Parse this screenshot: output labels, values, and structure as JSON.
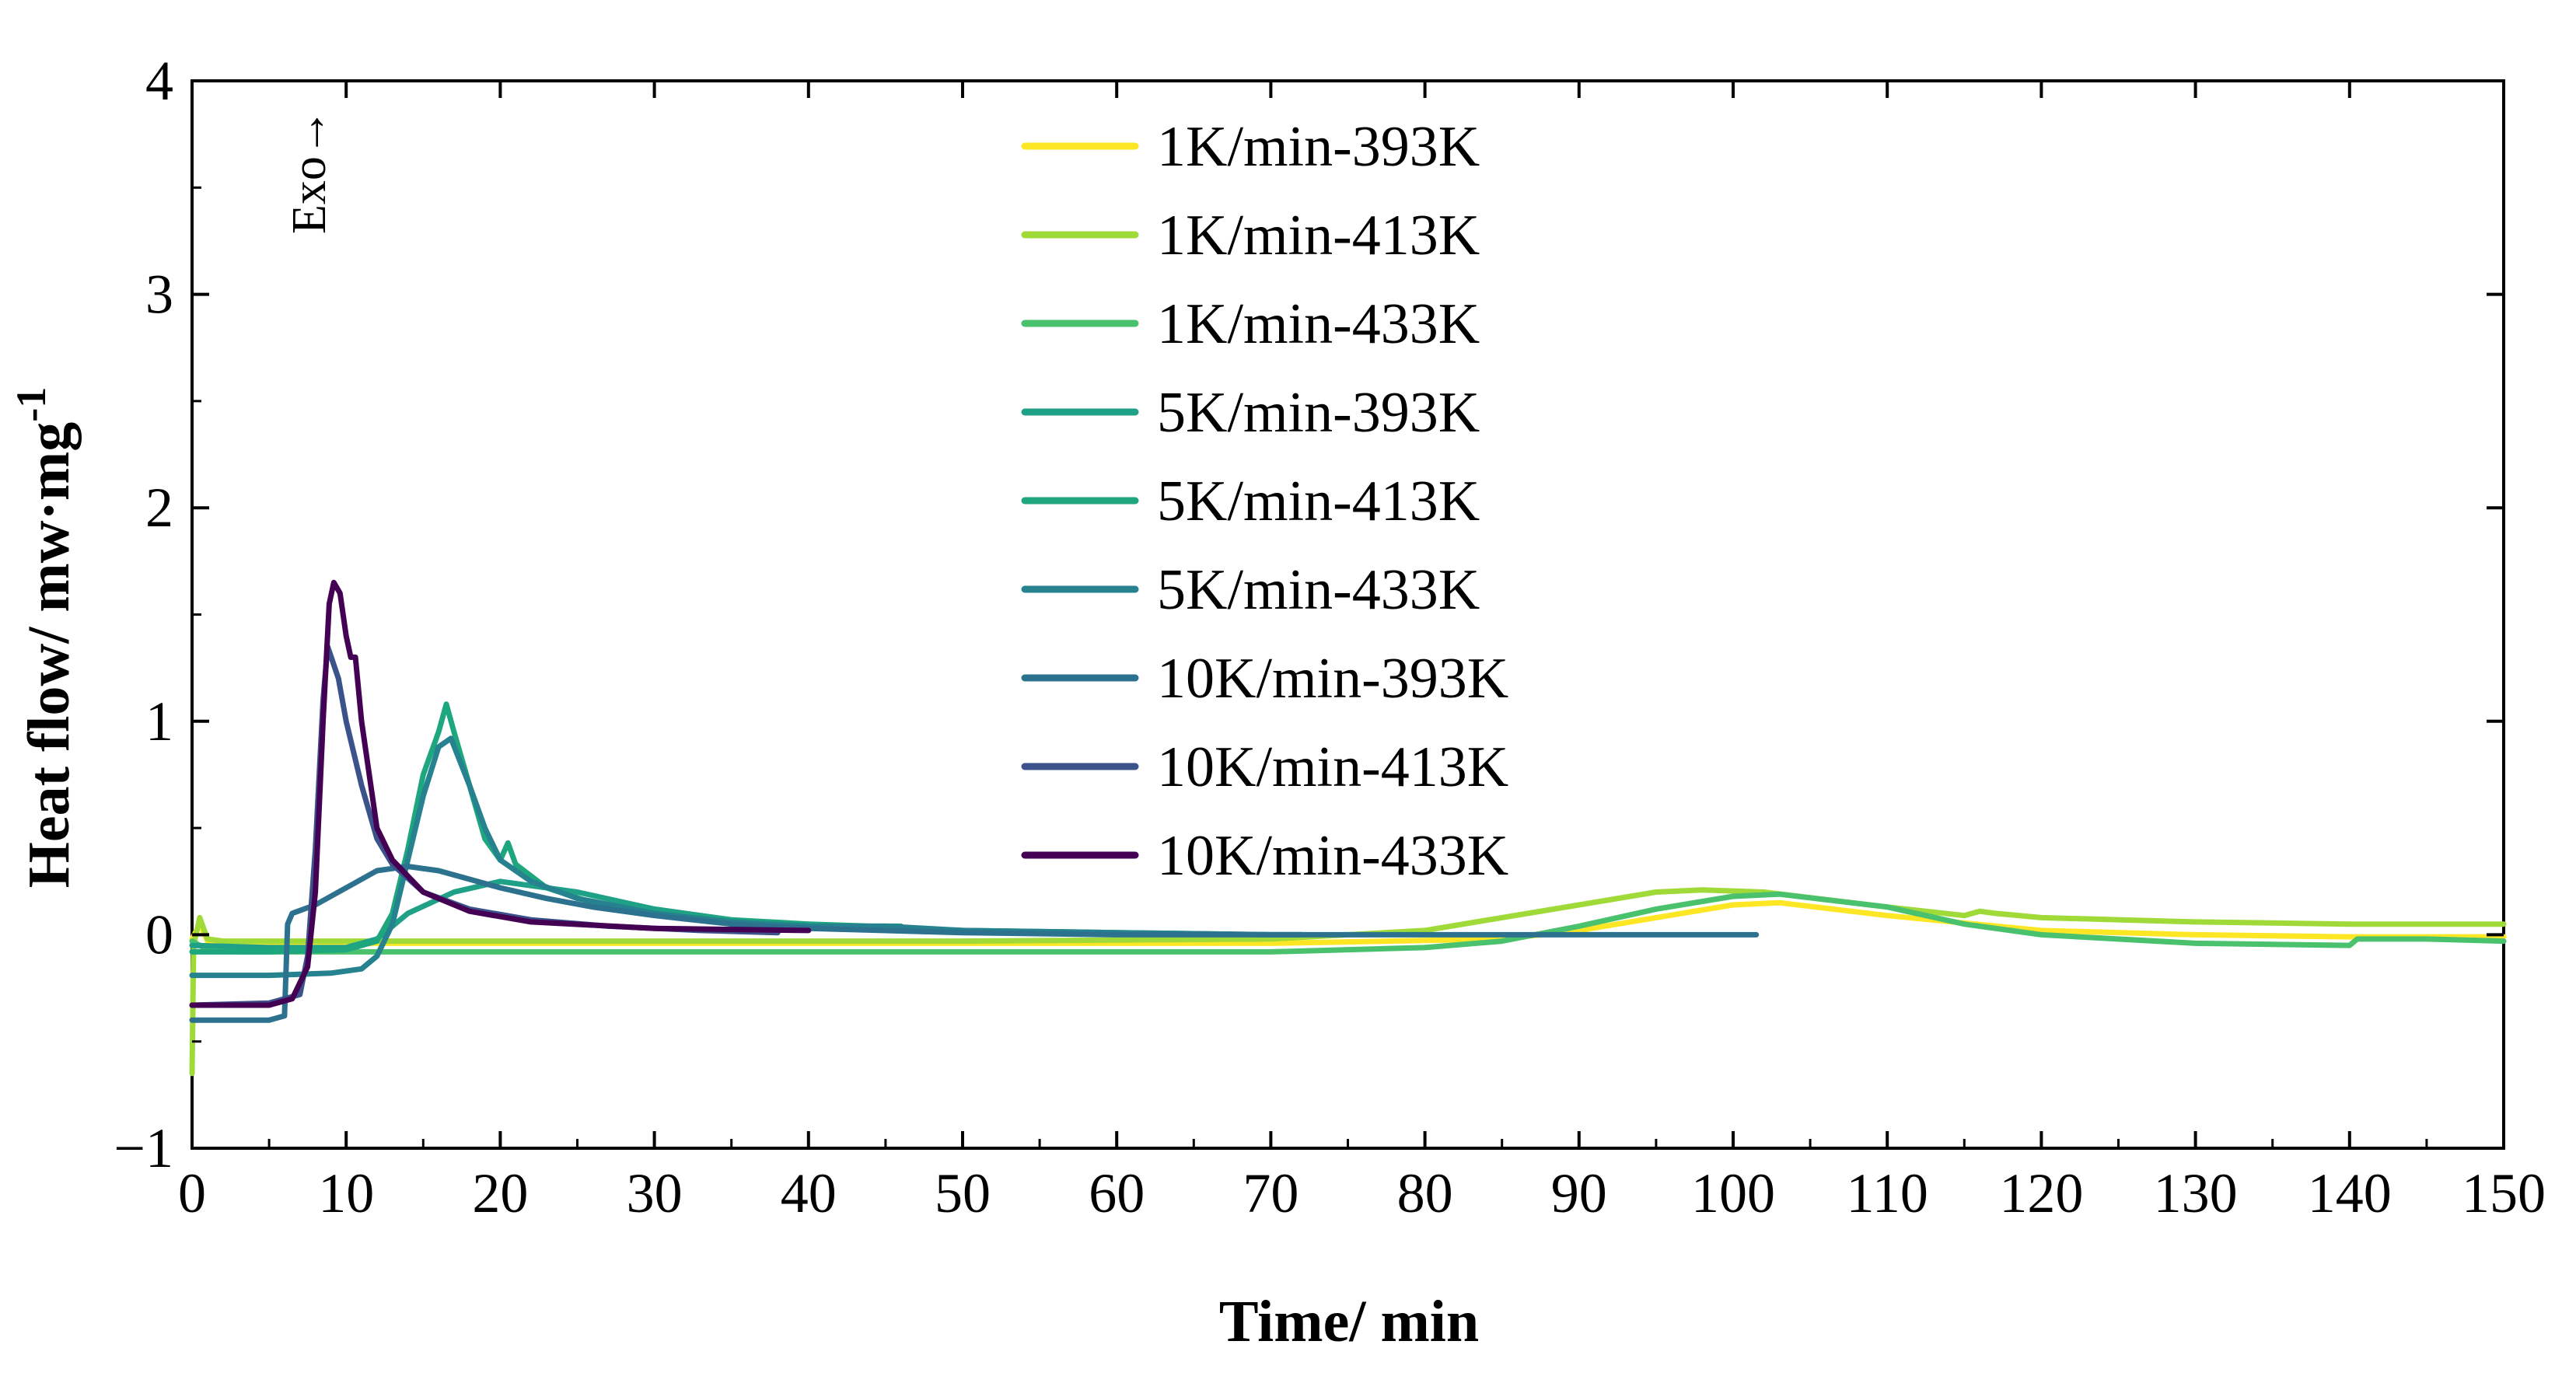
{
  "chart_data": {
    "type": "line",
    "title": "",
    "xlabel": "Time/ min",
    "ylabel": "Heat flow/ mw·mg",
    "ylabel_superscript": "-1",
    "xlim": [
      0,
      150
    ],
    "ylim": [
      -1,
      4
    ],
    "x_ticks": [
      0,
      10,
      20,
      30,
      40,
      50,
      60,
      70,
      80,
      90,
      100,
      110,
      120,
      130,
      140,
      150
    ],
    "y_ticks": [
      -1,
      0,
      1,
      2,
      3,
      4
    ],
    "x_tick_labels": [
      "0",
      "10",
      "20",
      "30",
      "40",
      "50",
      "60",
      "70",
      "80",
      "90",
      "100",
      "110",
      "120",
      "130",
      "140",
      "150"
    ],
    "y_tick_labels": [
      "−1",
      "0",
      "1",
      "2",
      "3",
      "4"
    ],
    "grid": false,
    "legend_position": "top-center",
    "annotation": "Exo→",
    "series": [
      {
        "name": "1K/min-393K",
        "color": "#fde725",
        "points": [
          [
            0,
            -0.02
          ],
          [
            0.5,
            0.05
          ],
          [
            1,
            -0.03
          ],
          [
            2,
            -0.04
          ],
          [
            10,
            -0.04
          ],
          [
            30,
            -0.04
          ],
          [
            50,
            -0.04
          ],
          [
            70,
            -0.04
          ],
          [
            85,
            -0.02
          ],
          [
            90,
            0.02
          ],
          [
            95,
            0.08
          ],
          [
            100,
            0.14
          ],
          [
            103,
            0.15
          ],
          [
            110,
            0.09
          ],
          [
            120,
            0.02
          ],
          [
            130,
            0.0
          ],
          [
            140,
            -0.01
          ],
          [
            150,
            -0.01
          ]
        ]
      },
      {
        "name": "1K/min-413K",
        "color": "#a0da39",
        "points": [
          [
            0,
            -0.65
          ],
          [
            0.1,
            -0.05
          ],
          [
            0.5,
            0.08
          ],
          [
            1,
            -0.02
          ],
          [
            2,
            -0.03
          ],
          [
            10,
            -0.03
          ],
          [
            30,
            -0.03
          ],
          [
            50,
            -0.03
          ],
          [
            70,
            -0.02
          ],
          [
            80,
            0.02
          ],
          [
            85,
            0.08
          ],
          [
            90,
            0.14
          ],
          [
            95,
            0.2
          ],
          [
            98,
            0.21
          ],
          [
            102,
            0.2
          ],
          [
            110,
            0.13
          ],
          [
            115,
            0.09
          ],
          [
            116,
            0.11
          ],
          [
            117,
            0.1
          ],
          [
            120,
            0.08
          ],
          [
            130,
            0.06
          ],
          [
            140,
            0.05
          ],
          [
            150,
            0.05
          ]
        ]
      },
      {
        "name": "1K/min-433K",
        "color": "#4ac16d",
        "points": [
          [
            0,
            -0.03
          ],
          [
            1,
            -0.07
          ],
          [
            3,
            -0.08
          ],
          [
            10,
            -0.08
          ],
          [
            30,
            -0.08
          ],
          [
            50,
            -0.08
          ],
          [
            70,
            -0.08
          ],
          [
            80,
            -0.06
          ],
          [
            85,
            -0.03
          ],
          [
            90,
            0.04
          ],
          [
            95,
            0.12
          ],
          [
            100,
            0.18
          ],
          [
            103,
            0.19
          ],
          [
            110,
            0.13
          ],
          [
            115,
            0.05
          ],
          [
            120,
            0.0
          ],
          [
            130,
            -0.04
          ],
          [
            140,
            -0.05
          ],
          [
            140.5,
            -0.02
          ],
          [
            145,
            -0.02
          ],
          [
            150,
            -0.03
          ]
        ]
      },
      {
        "name": "5K/min-393K",
        "color": "#1fa187",
        "points": [
          [
            0,
            -0.05
          ],
          [
            5,
            -0.06
          ],
          [
            10,
            -0.06
          ],
          [
            12,
            -0.02
          ],
          [
            14,
            0.1
          ],
          [
            17,
            0.2
          ],
          [
            20,
            0.25
          ],
          [
            25,
            0.2
          ],
          [
            30,
            0.12
          ],
          [
            35,
            0.07
          ],
          [
            40,
            0.04
          ],
          [
            45,
            0.03
          ],
          [
            50,
            0.02
          ],
          [
            60,
            0.01
          ],
          [
            70,
            0.0
          ],
          [
            72,
            0.0
          ]
        ]
      },
      {
        "name": "5K/min-413K",
        "color": "#1ea67f",
        "points": [
          [
            0,
            -0.08
          ],
          [
            5,
            -0.08
          ],
          [
            10,
            -0.07
          ],
          [
            12,
            -0.03
          ],
          [
            13,
            0.1
          ],
          [
            14,
            0.4
          ],
          [
            15,
            0.75
          ],
          [
            16,
            0.95
          ],
          [
            16.5,
            1.08
          ],
          [
            17,
            0.95
          ],
          [
            18,
            0.7
          ],
          [
            19,
            0.45
          ],
          [
            20,
            0.35
          ],
          [
            20.5,
            0.43
          ],
          [
            21,
            0.33
          ],
          [
            23,
            0.22
          ],
          [
            26,
            0.15
          ],
          [
            30,
            0.1
          ],
          [
            35,
            0.07
          ],
          [
            40,
            0.05
          ],
          [
            44,
            0.04
          ],
          [
            46,
            0.04
          ]
        ]
      },
      {
        "name": "5K/min-433K",
        "color": "#26828e",
        "points": [
          [
            0,
            -0.19
          ],
          [
            5,
            -0.19
          ],
          [
            9,
            -0.18
          ],
          [
            11,
            -0.16
          ],
          [
            12,
            -0.1
          ],
          [
            13,
            0.05
          ],
          [
            14,
            0.35
          ],
          [
            15,
            0.65
          ],
          [
            16,
            0.88
          ],
          [
            16.8,
            0.92
          ],
          [
            18,
            0.7
          ],
          [
            19,
            0.5
          ],
          [
            20,
            0.35
          ],
          [
            22,
            0.25
          ],
          [
            25,
            0.17
          ],
          [
            30,
            0.1
          ],
          [
            35,
            0.06
          ],
          [
            40,
            0.04
          ],
          [
            45,
            0.04
          ],
          [
            50,
            0.02
          ],
          [
            60,
            0.01
          ],
          [
            70,
            0.0
          ],
          [
            72,
            0.0
          ]
        ]
      },
      {
        "name": "10K/min-393K",
        "color": "#2c718e",
        "points": [
          [
            0,
            -0.4
          ],
          [
            5,
            -0.4
          ],
          [
            6,
            -0.38
          ],
          [
            6.2,
            0.05
          ],
          [
            6.5,
            0.1
          ],
          [
            8,
            0.14
          ],
          [
            10,
            0.22
          ],
          [
            12,
            0.3
          ],
          [
            14,
            0.32
          ],
          [
            16,
            0.3
          ],
          [
            18,
            0.26
          ],
          [
            20,
            0.22
          ],
          [
            23,
            0.17
          ],
          [
            26,
            0.13
          ],
          [
            30,
            0.09
          ],
          [
            35,
            0.05
          ],
          [
            40,
            0.03
          ],
          [
            50,
            0.01
          ],
          [
            60,
            0.0
          ],
          [
            70,
            0.0
          ],
          [
            80,
            0.0
          ],
          [
            90,
            0.0
          ],
          [
            100,
            0.0
          ],
          [
            101.5,
            0.0
          ]
        ]
      },
      {
        "name": "10K/min-413K",
        "color": "#3b528b",
        "points": [
          [
            0,
            -0.33
          ],
          [
            5,
            -0.32
          ],
          [
            7,
            -0.28
          ],
          [
            7.5,
            -0.1
          ],
          [
            8,
            0.4
          ],
          [
            8.5,
            1.1
          ],
          [
            8.8,
            1.35
          ],
          [
            9.5,
            1.2
          ],
          [
            10,
            1.0
          ],
          [
            11,
            0.7
          ],
          [
            12,
            0.45
          ],
          [
            13,
            0.33
          ],
          [
            15,
            0.2
          ],
          [
            18,
            0.12
          ],
          [
            22,
            0.07
          ],
          [
            27,
            0.04
          ],
          [
            33,
            0.02
          ],
          [
            38,
            0.01
          ]
        ]
      },
      {
        "name": "10K/min-433K",
        "color": "#440154",
        "points": [
          [
            0,
            -0.33
          ],
          [
            5,
            -0.33
          ],
          [
            6.5,
            -0.3
          ],
          [
            7.5,
            -0.15
          ],
          [
            8,
            0.2
          ],
          [
            8.5,
            1.0
          ],
          [
            8.9,
            1.55
          ],
          [
            9.2,
            1.65
          ],
          [
            9.6,
            1.6
          ],
          [
            10,
            1.4
          ],
          [
            10.3,
            1.3
          ],
          [
            10.6,
            1.3
          ],
          [
            11,
            1.0
          ],
          [
            12,
            0.5
          ],
          [
            13,
            0.35
          ],
          [
            15,
            0.2
          ],
          [
            18,
            0.11
          ],
          [
            22,
            0.06
          ],
          [
            30,
            0.03
          ],
          [
            40,
            0.02
          ]
        ]
      }
    ]
  }
}
